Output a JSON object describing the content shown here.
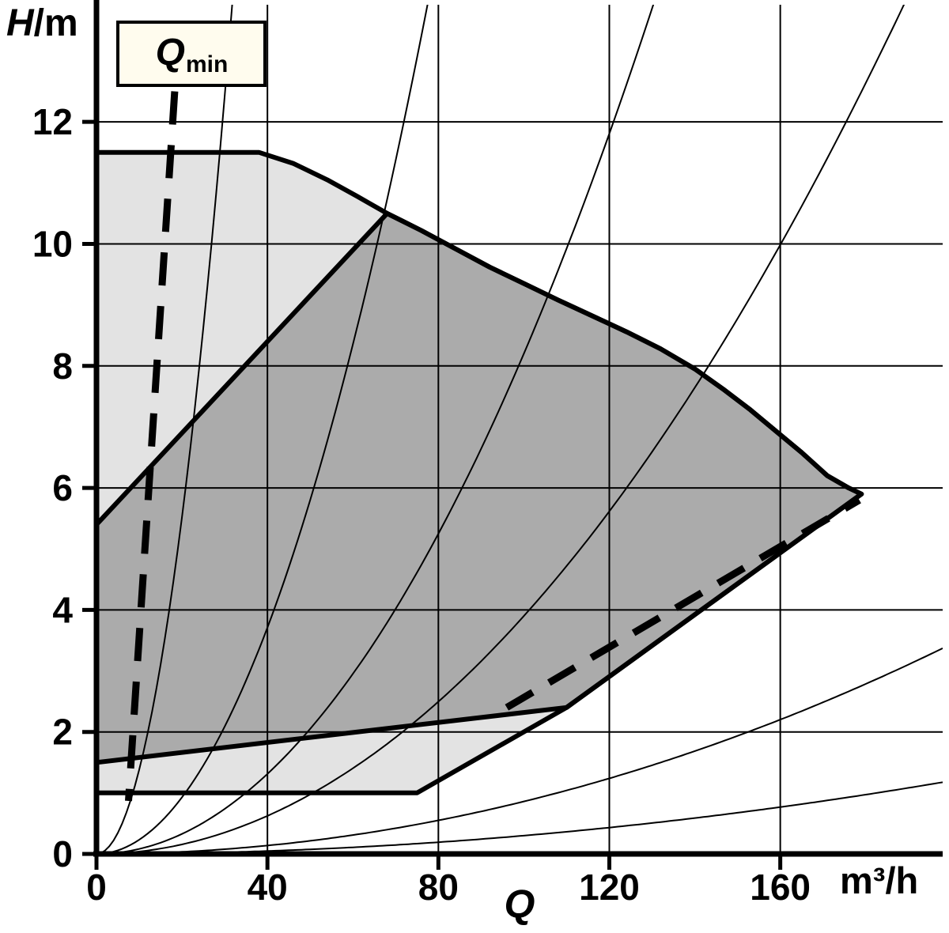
{
  "chart_data": {
    "type": "area",
    "description": "Pump duty-range chart: head H in metres versus flow Q in m3/h, with a light grey full operating envelope, a dark grey preferred operating region, thin system-characteristic parabolas from the origin, a dashed Qmin minimum-flow limit line and a dashed lower-right limit line",
    "x_axis": {
      "label": "Q",
      "unit": "m³/h",
      "ticks": [
        0,
        40,
        80,
        120,
        160
      ],
      "range": [
        0,
        198
      ]
    },
    "y_axis": {
      "label": "H/m",
      "ticks": [
        0,
        2,
        4,
        6,
        8,
        10,
        12
      ],
      "range": [
        0,
        13.92
      ]
    },
    "grid": true,
    "legend": "none",
    "colors": {
      "outer_region": "#e3e3e3",
      "inner_region": "#ababab",
      "line": "#000000",
      "qmin_box_bg": "#fffcee"
    },
    "regions": {
      "outer_envelope": [
        [
          0,
          11.5
        ],
        [
          38,
          11.5
        ],
        [
          46,
          11.32
        ],
        [
          54,
          11.05
        ],
        [
          61,
          10.78
        ],
        [
          68,
          10.5
        ],
        [
          76,
          10.22
        ],
        [
          84,
          9.92
        ],
        [
          92,
          9.62
        ],
        [
          100,
          9.35
        ],
        [
          108,
          9.08
        ],
        [
          116,
          8.82
        ],
        [
          124,
          8.56
        ],
        [
          132,
          8.28
        ],
        [
          140,
          7.95
        ],
        [
          147,
          7.6
        ],
        [
          153,
          7.28
        ],
        [
          159,
          6.93
        ],
        [
          165,
          6.58
        ],
        [
          171,
          6.2
        ],
        [
          176,
          6.0
        ],
        [
          179,
          5.9
        ],
        [
          110,
          2.4
        ],
        [
          75,
          1.0
        ],
        [
          0,
          1.0
        ]
      ],
      "inner_envelope": [
        [
          0,
          5.4
        ],
        [
          68,
          10.5
        ],
        [
          76,
          10.22
        ],
        [
          84,
          9.92
        ],
        [
          92,
          9.62
        ],
        [
          100,
          9.35
        ],
        [
          108,
          9.08
        ],
        [
          116,
          8.82
        ],
        [
          124,
          8.56
        ],
        [
          132,
          8.28
        ],
        [
          140,
          7.95
        ],
        [
          147,
          7.6
        ],
        [
          153,
          7.28
        ],
        [
          159,
          6.93
        ],
        [
          165,
          6.58
        ],
        [
          171,
          6.2
        ],
        [
          176,
          6.0
        ],
        [
          179,
          5.9
        ],
        [
          110,
          2.4
        ],
        [
          0,
          1.5
        ]
      ]
    },
    "system_curve_coefficients": [
      0.0138,
      0.00232,
      0.00082,
      0.00039,
      8.6e-05,
      3e-05
    ],
    "qmin_line": [
      [
        18.3,
        12.5
      ],
      [
        7.5,
        0.87
      ]
    ],
    "aux_dashed_line": [
      [
        96,
        2.4
      ],
      [
        178.5,
        5.8
      ]
    ],
    "annotation": {
      "qmin_label": "Qmin"
    }
  },
  "labels": {
    "y_axis_italic": "H",
    "y_axis_rest": "/m",
    "x_axis_italic": "Q",
    "x_unit": "m³/h",
    "qmin_main": "Q",
    "qmin_sub": "min"
  }
}
